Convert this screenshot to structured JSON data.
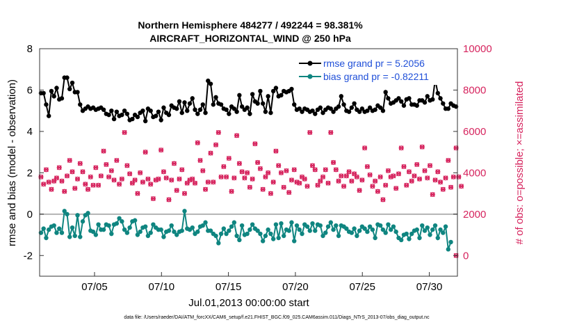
{
  "chart_data": {
    "type": "line",
    "title_line1": "Northern Hemisphere 484277 / 492244 = 98.381%",
    "title_line2": "AIRCRAFT_HORIZONTAL_WIND @ 250 hPa",
    "ylabel_left": "rmse and bias (model - observation)",
    "ylabel_right": "# of obs: o=possible; ×=assimilated",
    "xlabel": "Jul.01,2013 00:00:00 start",
    "footnote": "data file: /Users/raeder/DAI/ATM_forcXX/CAM6_setup/f.e21.FHIST_BGC.f09_025.CAM6assim.011/Diags_NTrS_2013-07/obs_diag_output.nc",
    "left_ylim": [
      -3,
      8
    ],
    "right_ylim": [
      -1000,
      10000
    ],
    "xlim": [
      0.9,
      32.1
    ],
    "left_ticks": [
      "-2",
      "0",
      "2",
      "4",
      "6",
      "8"
    ],
    "left_tick_values": [
      -2,
      0,
      2,
      4,
      6,
      8
    ],
    "right_ticks": [
      "0",
      "2000",
      "4000",
      "6000",
      "8000",
      "10000"
    ],
    "right_tick_values": [
      0,
      2000,
      4000,
      6000,
      8000,
      10000
    ],
    "x_ticks": [
      "07/05",
      "07/10",
      "07/15",
      "07/20",
      "07/25",
      "07/30"
    ],
    "x_tick_values": [
      5,
      10,
      15,
      20,
      25,
      30
    ],
    "zero_line": 0,
    "legend": [
      {
        "label": "rmse grand pr = 5.2056",
        "color": "#000000"
      },
      {
        "label": "bias grand pr = -0.82211",
        "color": "#0f8580"
      }
    ],
    "colors": {
      "rmse": "#000000",
      "bias": "#0f8580",
      "obs": "#d6245e",
      "zero": "#b3b3b3"
    },
    "rmse": [
      5.85,
      5.85,
      5.3,
      4.75,
      5.95,
      5.7,
      6.1,
      5.55,
      5.6,
      6.6,
      6.6,
      6.05,
      6.35,
      5.9,
      5.9,
      5.3,
      5.0,
      5.1,
      5.2,
      5.1,
      5.15,
      5.05,
      5.1,
      5.15,
      5.05,
      4.85,
      4.8,
      5.0,
      4.6,
      4.95,
      4.75,
      4.8,
      5.0,
      4.85,
      4.55,
      4.6,
      4.8,
      4.7,
      4.9,
      5.0,
      4.5,
      5.1,
      5.0,
      4.7,
      4.75,
      4.95,
      4.55,
      5.15,
      4.9,
      4.8,
      5.25,
      5.15,
      5.1,
      5.45,
      4.9,
      5.4,
      5.0,
      5.35,
      5.6,
      5.05,
      4.85,
      5.05,
      5.3,
      4.9,
      6.45,
      6.3,
      5.3,
      5.65,
      5.35,
      5.3,
      5.1,
      5.05,
      4.85,
      5.2,
      5.1,
      4.95,
      5.75,
      5.2,
      5.05,
      5.15,
      4.85,
      5.8,
      5.45,
      5.35,
      5.95,
      5.35,
      4.95,
      5.7,
      4.9,
      5.95,
      6.1,
      5.7,
      5.75,
      5.95,
      5.9,
      5.95,
      6.05,
      5.3,
      5.05,
      5.1,
      4.95,
      5.1,
      5.05,
      4.95,
      5.0,
      4.85,
      5.05,
      5.15,
      4.9,
      5.05,
      5.15,
      5.1,
      4.95,
      5.1,
      5.2,
      5.7,
      5.3,
      5.0,
      4.95,
      5.15,
      5.35,
      5.05,
      4.95,
      5.1,
      4.95,
      5.0,
      5.15,
      5.0,
      5.05,
      5.25,
      5.15,
      5.0,
      5.9,
      5.6,
      5.35,
      5.4,
      5.5,
      5.6,
      5.45,
      5.25,
      5.55,
      5.6,
      5.3,
      5.3,
      5.25,
      5.5,
      5.5,
      5.4,
      5.7,
      5.5,
      5.55,
      6.5,
      5.85,
      5.6,
      5.35,
      5.1,
      5.1,
      5.35,
      5.25,
      5.2
    ],
    "bias": [
      -0.9,
      -0.7,
      -1.15,
      -0.75,
      -0.6,
      -0.55,
      -0.9,
      -0.7,
      -0.9,
      0.15,
      0.0,
      -1.1,
      -0.65,
      -1.05,
      -0.05,
      -1.1,
      -0.35,
      -0.05,
      0.05,
      -0.8,
      -0.85,
      -1.0,
      -0.5,
      -0.75,
      -0.75,
      -0.5,
      -0.55,
      -0.95,
      -0.5,
      -0.45,
      -0.2,
      -0.35,
      -0.75,
      -0.9,
      -0.65,
      -0.35,
      -0.3,
      -1.0,
      -0.85,
      -0.65,
      -0.6,
      -1.05,
      -0.9,
      -0.5,
      -0.65,
      -0.75,
      -0.75,
      -1.1,
      -0.85,
      -0.8,
      -0.55,
      -0.85,
      -1.0,
      -0.85,
      -0.8,
      0.15,
      -0.7,
      -0.75,
      -0.65,
      -0.95,
      -0.85,
      -0.6,
      -0.55,
      -0.4,
      -0.8,
      -0.8,
      -0.95,
      -1.05,
      -1.4,
      -0.95,
      -0.7,
      -0.95,
      -0.8,
      -0.6,
      -0.4,
      -1.05,
      -1.25,
      -0.55,
      -1.0,
      -0.95,
      -0.75,
      -0.5,
      -0.7,
      -0.8,
      -0.95,
      -1.3,
      -1.05,
      -0.75,
      -0.95,
      -1.2,
      -0.5,
      -1.15,
      -0.45,
      -1.05,
      -0.75,
      -0.8,
      -0.4,
      -1.3,
      -0.55,
      -0.75,
      -0.95,
      -0.5,
      -0.6,
      -0.8,
      -0.45,
      -0.8,
      -0.5,
      -0.55,
      -1.05,
      -0.9,
      -0.6,
      -0.4,
      -0.75,
      -0.55,
      -1.05,
      -0.55,
      -0.6,
      -0.7,
      -0.85,
      -0.9,
      -0.7,
      -1.05,
      -0.8,
      -0.6,
      -0.7,
      -0.85,
      -0.6,
      -0.75,
      -1.15,
      -0.5,
      -0.55,
      -0.75,
      -0.9,
      -0.5,
      -0.75,
      -0.6,
      -0.85,
      -1.15,
      -1.25,
      -1.0,
      -0.95,
      -1.2,
      -0.95,
      -0.8,
      -0.75,
      -1.15,
      -0.55,
      -0.8,
      -0.65,
      -1.0,
      -0.75,
      -0.55,
      -1.15,
      -0.75,
      -0.9,
      -0.6,
      -1.7,
      -1.35
    ],
    "obs_counts": [
      3800,
      3450,
      4150,
      3550,
      3200,
      3600,
      3750,
      4250,
      3600,
      3100,
      3850,
      4600,
      4050,
      3250,
      3700,
      4450,
      4050,
      3450,
      3200,
      3800,
      3400,
      4250,
      3400,
      3850,
      5050,
      4400,
      3800,
      4100,
      3650,
      4600,
      3450,
      3700,
      5950,
      4350,
      3950,
      3500,
      3650,
      3000,
      4000,
      3550,
      5000,
      3700,
      3450,
      2750,
      3650,
      3700,
      5100,
      4050,
      3750,
      2700,
      3650,
      4450,
      3150,
      3700,
      4150,
      3000,
      3500,
      3650,
      3700,
      3500,
      5450,
      4600,
      4100,
      3200,
      3550,
      4950,
      3550,
      5350,
      5950,
      3800,
      4300,
      3800,
      4700,
      3100,
      3750,
      5800,
      4450,
      4050,
      3750,
      4000,
      3300,
      3700,
      5400,
      4500,
      4200,
      3200,
      3800,
      4000,
      3000,
      3550,
      5050,
      4350,
      4000,
      3300,
      4100,
      3050,
      3650,
      4150,
      3550,
      3500,
      3800,
      3700,
      3350,
      5950,
      4350,
      4150,
      3400,
      3600,
      3800,
      4150,
      3500,
      5950,
      4500,
      4150,
      3600,
      3850,
      3350,
      3850,
      4050,
      3600,
      3950,
      3800,
      3150,
      3650,
      5200,
      4300,
      3900,
      3350,
      3600,
      3100,
      3800,
      2700,
      3400,
      4100,
      3800,
      3850,
      3250,
      3950,
      5200,
      4300,
      3400,
      4050,
      3600,
      3850,
      4400,
      3700,
      5250,
      4100,
      3750,
      4350,
      2950,
      3650,
      4050,
      3550,
      3200,
      3750,
      4600,
      3300,
      3800,
      5200,
      3800,
      3350
    ],
    "obs_extra_last": 0
  }
}
